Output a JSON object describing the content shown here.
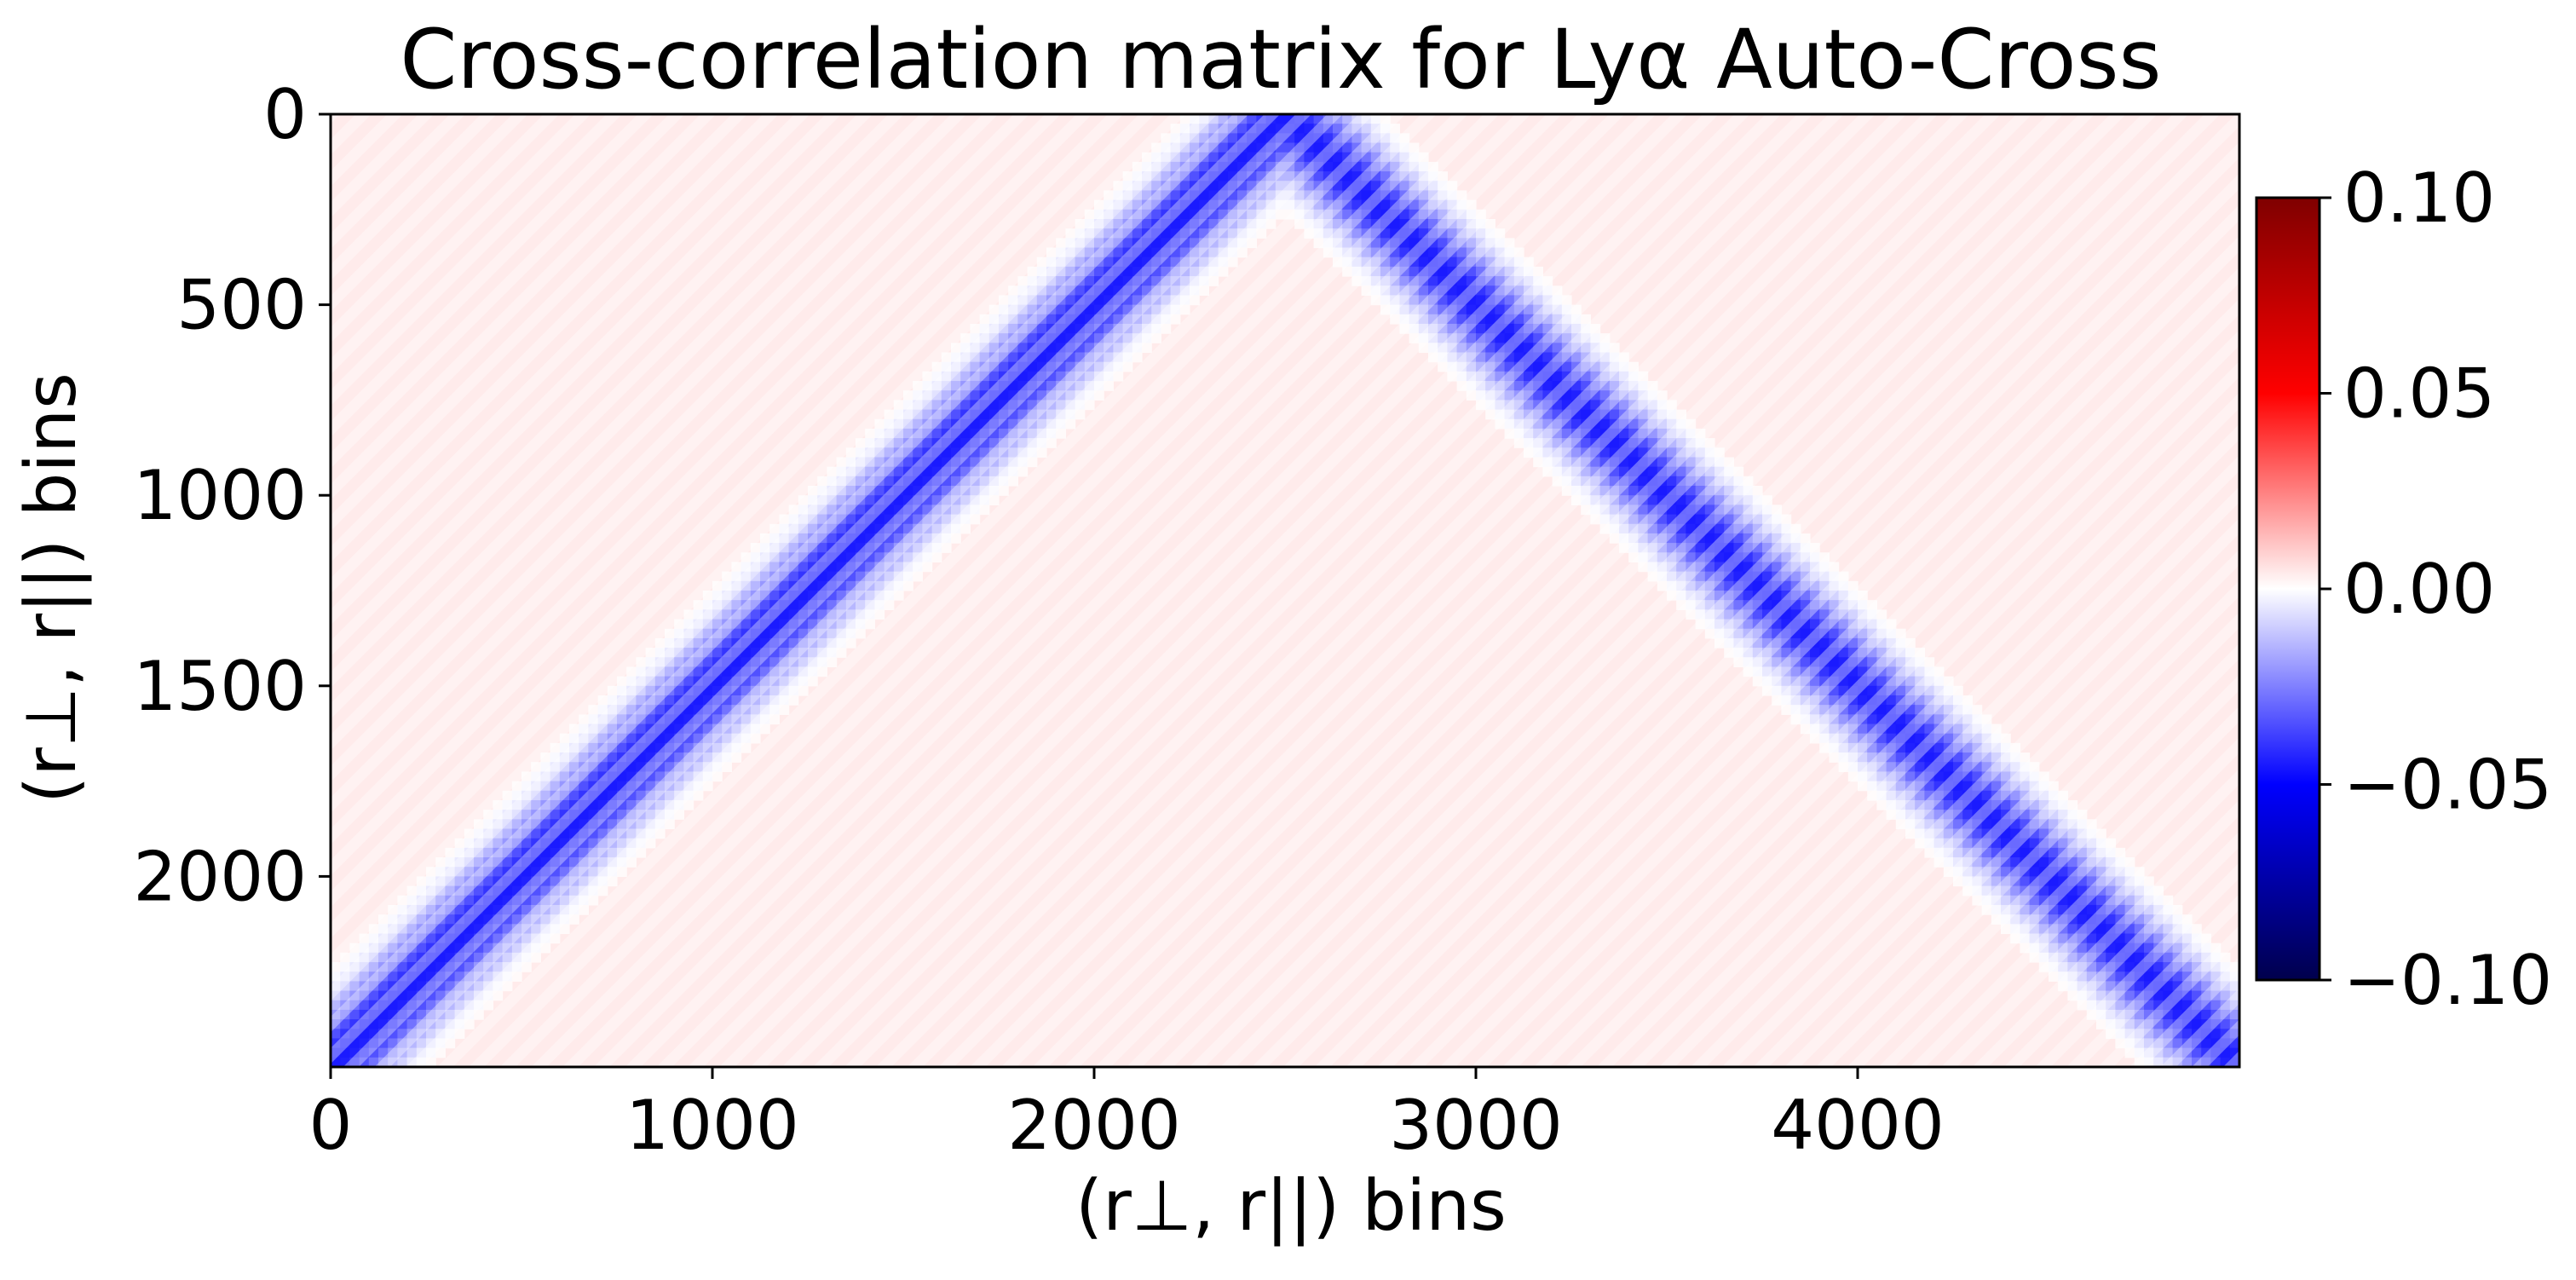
{
  "chart_data": {
    "type": "heatmap",
    "title": "Cross-correlation matrix for Lyα Auto-Cross",
    "xlabel": "(r⊥, r||) bins",
    "ylabel": "(r⊥, r||) bins",
    "xlim": [
      0,
      5000
    ],
    "ylim": [
      2500,
      0
    ],
    "x_ticks": [
      0,
      1000,
      2000,
      3000,
      4000
    ],
    "y_ticks": [
      0,
      500,
      1000,
      1500,
      2000
    ],
    "x_tick_labels": [
      "0",
      "1000",
      "2000",
      "3000",
      "4000"
    ],
    "y_tick_labels": [
      "0",
      "500",
      "1000",
      "1500",
      "2000"
    ],
    "colormap": "seismic",
    "colormap_stops": [
      "#00004c",
      "#0000ff",
      "#ffffff",
      "#ff0000",
      "#7f0000"
    ],
    "colorbar": {
      "vmin": -0.1,
      "vmax": 0.1,
      "ticks": [
        0.1,
        0.05,
        0.0,
        -0.05,
        -0.1
      ],
      "tick_labels": [
        "0.10",
        "0.05",
        "0.00",
        "−0.05",
        "−0.10"
      ]
    },
    "pattern": {
      "description_values": "near-zero background with a negative-correlation band forming an inverted V",
      "background_value": 0.004,
      "band_peak_value": -0.045,
      "band_apex": [
        2500,
        0
      ],
      "band_left_end": [
        0,
        2500
      ],
      "band_right_end": [
        5000,
        2500
      ],
      "band_halfwidth_bins": 150
    }
  }
}
